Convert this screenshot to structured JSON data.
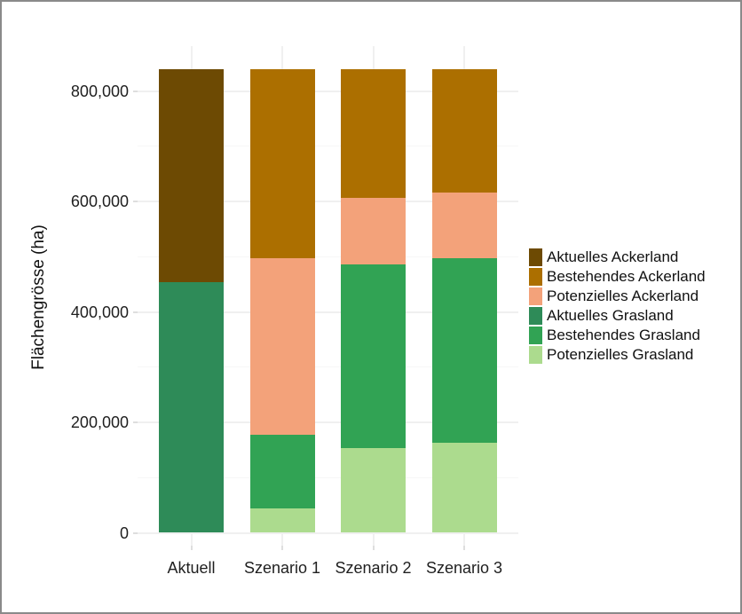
{
  "frame": {
    "border_color": "#8a8a8a",
    "background_color": "#ffffff"
  },
  "chart_data": {
    "type": "bar",
    "stacked": true,
    "title": "",
    "xlabel": "",
    "ylabel": "Flächengrösse (ha)",
    "categories": [
      "Aktuell",
      "Szenario 1",
      "Szenario 2",
      "Szenario 3"
    ],
    "series": [
      {
        "name": "Aktuelles Ackerland",
        "color": "#6d4a03",
        "values": [
          386000,
          0,
          0,
          0
        ]
      },
      {
        "name": "Bestehendes Ackerland",
        "color": "#ac6f00",
        "values": [
          0,
          343000,
          234000,
          224000
        ]
      },
      {
        "name": "Potenzielles Ackerland",
        "color": "#f3a27a",
        "values": [
          0,
          320000,
          120000,
          118000
        ]
      },
      {
        "name": "Aktuelles Grasland",
        "color": "#2e8b58",
        "values": [
          454000,
          0,
          0,
          0
        ]
      },
      {
        "name": "Bestehendes Grasland",
        "color": "#31a354",
        "values": [
          0,
          133000,
          332000,
          335000
        ]
      },
      {
        "name": "Potenzielles Grasland",
        "color": "#acdb8e",
        "values": [
          0,
          44000,
          154000,
          163000
        ]
      }
    ],
    "stack_order_note": "bars stack bottom-to-top in reverse series order",
    "bar_totals": [
      840000,
      840000,
      840000,
      840000
    ],
    "ylim": [
      0,
      840000
    ],
    "y_ticks": {
      "values": [
        0,
        200000,
        400000,
        600000,
        800000
      ],
      "labels": [
        "0",
        "200,000",
        "400,000",
        "600,000",
        "800,000"
      ]
    },
    "y_minor_ticks": [
      100000,
      300000,
      500000,
      700000
    ],
    "grid": true,
    "legend_position": "right"
  }
}
